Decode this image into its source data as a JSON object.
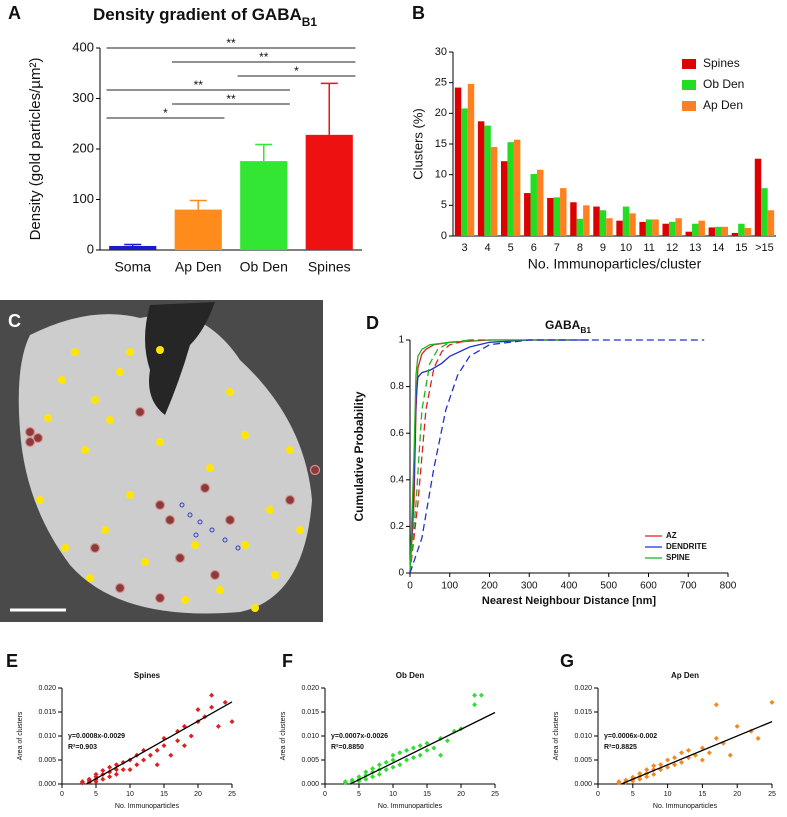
{
  "chart_data": [
    {
      "type": "bar",
      "panel_label": "A",
      "title": "Density gradient of GABA",
      "title_subscript": "B1",
      "ylabel": "Density (gold particles/µm²)",
      "categories": [
        "Soma",
        "Ap Den",
        "Ob Den",
        "Spines"
      ],
      "values": [
        8,
        80,
        176,
        228
      ],
      "errors": [
        3,
        18,
        33,
        102
      ],
      "colors": [
        "#1a1acc",
        "#ff8c1a",
        "#33e633",
        "#ee1111"
      ],
      "ylim": [
        0,
        400
      ],
      "yticks": [
        0,
        100,
        200,
        300,
        400
      ],
      "significance": [
        {
          "between": [
            "Soma",
            "Spines"
          ],
          "label": "**"
        },
        {
          "between": [
            "Ap Den",
            "Spines"
          ],
          "label": "**"
        },
        {
          "between": [
            "Ob Den",
            "Spines"
          ],
          "label": "*"
        },
        {
          "between": [
            "Soma",
            "Ob Den"
          ],
          "label": "**"
        },
        {
          "between": [
            "Ap Den",
            "Ob Den"
          ],
          "label": "**"
        },
        {
          "between": [
            "Soma",
            "Ap Den"
          ],
          "label": "*"
        }
      ]
    },
    {
      "type": "grouped_bar",
      "panel_label": "B",
      "ylabel": "Clusters (%)",
      "xlabel": "No. Immunoparticles/cluster",
      "categories": [
        "3",
        "4",
        "5",
        "6",
        "7",
        "8",
        "9",
        "10",
        "11",
        "12",
        "13",
        "14",
        "15",
        ">15"
      ],
      "series": [
        {
          "name": "Spines",
          "color": "#dd0000",
          "values": [
            24.2,
            18.7,
            12.2,
            7.0,
            6.2,
            5.5,
            4.8,
            2.5,
            2.3,
            2.0,
            0.7,
            1.4,
            0.5,
            12.6
          ]
        },
        {
          "name": "Ob Den",
          "color": "#22dd22",
          "values": [
            20.8,
            18.0,
            15.3,
            10.1,
            6.3,
            2.8,
            4.2,
            4.8,
            2.7,
            2.3,
            2.0,
            1.5,
            2.0,
            7.8
          ]
        },
        {
          "name": "Ap Den",
          "color": "#ff8020",
          "values": [
            24.8,
            14.5,
            15.7,
            10.8,
            7.8,
            5.0,
            2.9,
            3.7,
            2.7,
            2.9,
            2.5,
            1.5,
            1.3,
            4.2
          ]
        }
      ],
      "ylim": [
        0,
        30
      ],
      "yticks": [
        0,
        5,
        10,
        15,
        20,
        25,
        30
      ]
    },
    {
      "type": "image",
      "panel_label": "C"
    },
    {
      "type": "line",
      "panel_label": "D",
      "title": "GABA",
      "title_subscript": "B1",
      "xlabel": "Nearest Neighbour Distance [nm]",
      "ylabel": "Cumulative Probability",
      "xlim": [
        0,
        800
      ],
      "xticks": [
        0,
        100,
        200,
        300,
        400,
        500,
        600,
        700,
        800
      ],
      "ylim": [
        0,
        1
      ],
      "yticks": [
        0,
        0.2,
        0.4,
        0.6,
        0.8,
        1
      ],
      "series": [
        {
          "name": "AZ",
          "color": "#e02020",
          "x": [
            0,
            10,
            15,
            20,
            30,
            40,
            60,
            100,
            200,
            400
          ],
          "y": [
            0,
            0.3,
            0.7,
            0.88,
            0.94,
            0.96,
            0.98,
            0.99,
            1,
            1
          ]
        },
        {
          "name": "DENDRITE",
          "color": "#2030d0",
          "x": [
            0,
            10,
            15,
            20,
            30,
            50,
            60,
            80,
            100,
            150,
            200,
            300,
            450
          ],
          "y": [
            0,
            0.4,
            0.75,
            0.84,
            0.86,
            0.87,
            0.88,
            0.9,
            0.93,
            0.97,
            0.99,
            1,
            1
          ]
        },
        {
          "name": "SPINE",
          "color": "#20b020",
          "x": [
            0,
            10,
            15,
            20,
            30,
            50,
            100,
            200,
            400
          ],
          "y": [
            0,
            0.5,
            0.85,
            0.93,
            0.96,
            0.98,
            0.99,
            1,
            1
          ]
        },
        {
          "color": "#e02020",
          "dashed": true,
          "x": [
            0,
            20,
            40,
            60,
            80,
            100,
            150,
            200
          ],
          "y": [
            0,
            0.3,
            0.7,
            0.88,
            0.95,
            0.98,
            1,
            1
          ]
        },
        {
          "color": "#20b020",
          "dashed": true,
          "x": [
            0,
            15,
            30,
            50,
            70,
            100,
            150
          ],
          "y": [
            0,
            0.3,
            0.7,
            0.9,
            0.96,
            0.99,
            1
          ]
        },
        {
          "color": "#2030d0",
          "dashed": true,
          "x": [
            0,
            30,
            60,
            90,
            120,
            150,
            200,
            300,
            740
          ],
          "y": [
            0,
            0.15,
            0.45,
            0.7,
            0.85,
            0.93,
            0.98,
            1,
            1
          ]
        }
      ]
    },
    {
      "type": "scatter",
      "panel_label": "E",
      "title": "Spines",
      "equation": "y=0.0008x-0.0029",
      "r2": "R²=0.903",
      "xlabel": "No. Immunoparticles",
      "ylabel": "Area of clusters",
      "color": "#e02020",
      "xlim": [
        0,
        25
      ],
      "xticks": [
        0,
        5,
        10,
        15,
        20,
        25
      ],
      "ylim": [
        0,
        0.02
      ],
      "yticks": [
        {
          "value": 0,
          "label": "0.000"
        },
        {
          "value": 0.005,
          "label": "0.005"
        },
        {
          "value": 0.01,
          "label": "0.010"
        },
        {
          "value": 0.015,
          "label": "0.015"
        },
        {
          "value": 0.02,
          "label": "0.020"
        }
      ],
      "fit": {
        "slope": 0.0008,
        "intercept": -0.0029,
        "x": [
          3.6,
          25
        ]
      },
      "x": [
        3,
        3,
        4,
        4,
        4,
        5,
        5,
        5,
        5,
        6,
        6,
        6,
        7,
        7,
        7,
        8,
        8,
        8,
        9,
        9,
        10,
        10,
        11,
        11,
        12,
        12,
        13,
        14,
        14,
        15,
        15,
        16,
        17,
        17,
        18,
        18,
        19,
        20,
        20,
        21,
        22,
        22,
        23,
        24,
        25
      ],
      "y": [
        0.0002,
        0.0005,
        0.0003,
        0.0007,
        0.001,
        0.0005,
        0.001,
        0.0015,
        0.002,
        0.001,
        0.002,
        0.0028,
        0.0015,
        0.0025,
        0.0035,
        0.002,
        0.003,
        0.004,
        0.003,
        0.0045,
        0.003,
        0.005,
        0.004,
        0.006,
        0.005,
        0.007,
        0.006,
        0.007,
        0.004,
        0.008,
        0.0095,
        0.006,
        0.009,
        0.011,
        0.008,
        0.012,
        0.01,
        0.013,
        0.0155,
        0.014,
        0.016,
        0.0185,
        0.012,
        0.017,
        0.013
      ]
    },
    {
      "type": "scatter",
      "panel_label": "F",
      "title": "Ob Den",
      "equation": "y=0.0007x-0.0026",
      "r2": "R²=0.8850",
      "xlabel": "No. Immunoparticles",
      "ylabel": "Area of clusters",
      "color": "#33dd33",
      "xlim": [
        0,
        25
      ],
      "xticks": [
        0,
        5,
        10,
        15,
        20,
        25
      ],
      "ylim": [
        0,
        0.02
      ],
      "yticks": [
        {
          "value": 0,
          "label": "0.000"
        },
        {
          "value": 0.005,
          "label": "0.005"
        },
        {
          "value": 0.01,
          "label": "0.010"
        },
        {
          "value": 0.015,
          "label": "0.015"
        },
        {
          "value": 0.02,
          "label": "0.020"
        }
      ],
      "fit": {
        "slope": 0.0007,
        "intercept": -0.0026,
        "x": [
          3.7,
          25
        ]
      },
      "x": [
        3,
        3,
        4,
        4,
        5,
        5,
        5,
        6,
        6,
        6,
        7,
        7,
        7,
        8,
        8,
        8,
        9,
        9,
        10,
        10,
        10,
        11,
        11,
        12,
        12,
        13,
        13,
        14,
        14,
        15,
        15,
        16,
        17,
        17,
        18,
        19,
        20,
        22,
        22,
        23
      ],
      "y": [
        0.0002,
        0.0005,
        0.0004,
        0.0008,
        0.0006,
        0.001,
        0.0015,
        0.001,
        0.0018,
        0.0025,
        0.0015,
        0.0025,
        0.0032,
        0.002,
        0.003,
        0.004,
        0.003,
        0.0045,
        0.0035,
        0.005,
        0.006,
        0.004,
        0.0065,
        0.005,
        0.007,
        0.0055,
        0.0075,
        0.006,
        0.008,
        0.007,
        0.0085,
        0.0075,
        0.006,
        0.0095,
        0.009,
        0.011,
        0.0115,
        0.0165,
        0.0185,
        0.0185
      ]
    },
    {
      "type": "scatter",
      "panel_label": "G",
      "title": "Ap Den",
      "equation": "y=0.0006x-0.002",
      "r2": "R²=0.8825",
      "xlabel": "No. Immunoparticles",
      "ylabel": "Area of clusters",
      "color": "#f08a20",
      "xlim": [
        0,
        25
      ],
      "xticks": [
        0,
        5,
        10,
        15,
        20,
        25
      ],
      "ylim": [
        0,
        0.02
      ],
      "yticks": [
        {
          "value": 0,
          "label": "0.000"
        },
        {
          "value": 0.005,
          "label": "0.005"
        },
        {
          "value": 0.01,
          "label": "0.010"
        },
        {
          "value": 0.015,
          "label": "0.015"
        },
        {
          "value": 0.02,
          "label": "0.020"
        }
      ],
      "fit": {
        "slope": 0.0006,
        "intercept": -0.002,
        "x": [
          3.4,
          25
        ]
      },
      "x": [
        3,
        3,
        4,
        4,
        5,
        5,
        5,
        6,
        6,
        6,
        7,
        7,
        7,
        8,
        8,
        8,
        9,
        9,
        10,
        10,
        11,
        11,
        12,
        12,
        13,
        13,
        14,
        15,
        15,
        16,
        17,
        17,
        18,
        19,
        20,
        22,
        23,
        25
      ],
      "y": [
        0.0002,
        0.0005,
        0.0004,
        0.0008,
        0.0006,
        0.001,
        0.0014,
        0.001,
        0.0016,
        0.0022,
        0.0015,
        0.0022,
        0.003,
        0.002,
        0.003,
        0.0038,
        0.003,
        0.004,
        0.0035,
        0.005,
        0.004,
        0.0055,
        0.0045,
        0.0065,
        0.0055,
        0.007,
        0.006,
        0.005,
        0.0075,
        0.0065,
        0.0165,
        0.0095,
        0.0085,
        0.006,
        0.012,
        0.011,
        0.0095,
        0.017
      ]
    }
  ]
}
